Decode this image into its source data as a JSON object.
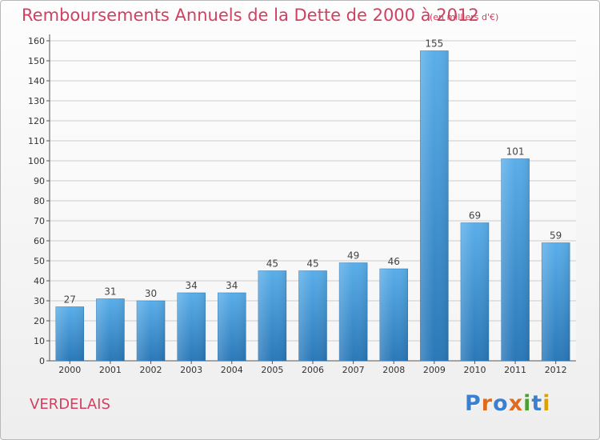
{
  "chart_data": {
    "type": "bar",
    "title": "Remboursements Annuels de la Dette de 2000 à 2012",
    "subtitle": "(en milliers d'€)",
    "categories": [
      "2000",
      "2001",
      "2002",
      "2003",
      "2004",
      "2005",
      "2006",
      "2007",
      "2008",
      "2009",
      "2010",
      "2011",
      "2012"
    ],
    "values": [
      27,
      31,
      30,
      34,
      34,
      45,
      45,
      49,
      46,
      155,
      69,
      101,
      59
    ],
    "ylim": [
      0,
      160
    ],
    "yticks": [
      0,
      10,
      20,
      30,
      40,
      50,
      60,
      70,
      80,
      90,
      100,
      110,
      120,
      130,
      140,
      150,
      160
    ],
    "grid": true,
    "bar_color": "#3f97dc"
  },
  "commune": "VERDELAIS",
  "logo": {
    "text": "Proxiti",
    "letter_colors": [
      "#3a7fd0",
      "#e06b1f",
      "#3a7fd0",
      "#e06b1f",
      "#4aa12f",
      "#3a7fd0",
      "#e0a000"
    ]
  },
  "colors": {
    "title": "#d04060",
    "grid": "#cccccc"
  }
}
